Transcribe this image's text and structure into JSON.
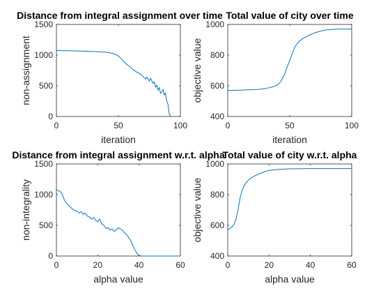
{
  "chart_data": [
    {
      "type": "line",
      "title": "Distance from integral assignment over time",
      "xlabel": "iteration",
      "ylabel": "non-assignment",
      "xlim": [
        0,
        100
      ],
      "ylim": [
        0,
        1500
      ],
      "xticks": [
        "0",
        "50",
        "100"
      ],
      "yticks": [
        "0",
        "500",
        "1000",
        "1500"
      ],
      "color": "#0072BD",
      "x": [
        0,
        5,
        10,
        15,
        20,
        25,
        30,
        35,
        38,
        40,
        42,
        45,
        48,
        50,
        53,
        55,
        58,
        60,
        62,
        65,
        68,
        70,
        72,
        73,
        75,
        76,
        78,
        79,
        80,
        81,
        82,
        83,
        84,
        85,
        86,
        87,
        88,
        89,
        90,
        91,
        92
      ],
      "y": [
        1075,
        1073,
        1070,
        1068,
        1066,
        1062,
        1058,
        1055,
        1050,
        1048,
        1040,
        1030,
        1012,
        985,
        930,
        880,
        830,
        800,
        760,
        720,
        690,
        650,
        610,
        640,
        580,
        620,
        540,
        560,
        480,
        510,
        430,
        470,
        380,
        400,
        440,
        350,
        380,
        250,
        200,
        40,
        0
      ]
    },
    {
      "type": "line",
      "title": "Total value of city over time",
      "xlabel": "iteration",
      "ylabel": "objective value",
      "xlim": [
        0,
        100
      ],
      "ylim": [
        400,
        1000
      ],
      "xticks": [
        "0",
        "50",
        "100"
      ],
      "yticks": [
        "400",
        "600",
        "800",
        "1000"
      ],
      "color": "#0072BD",
      "x": [
        0,
        10,
        20,
        25,
        30,
        35,
        38,
        40,
        42,
        44,
        46,
        48,
        50,
        52,
        54,
        56,
        58,
        60,
        65,
        70,
        75,
        80,
        85,
        90,
        95,
        100
      ],
      "y": [
        570,
        572,
        575,
        577,
        582,
        590,
        598,
        605,
        620,
        645,
        680,
        725,
        765,
        810,
        850,
        875,
        892,
        905,
        927,
        945,
        957,
        965,
        968,
        969,
        970,
        970
      ]
    },
    {
      "type": "line",
      "title": "Distance from integral assignment w.r.t. alpha",
      "xlabel": "alpha value",
      "ylabel": "non-integrality",
      "xlim": [
        0,
        60
      ],
      "ylim": [
        0,
        1500
      ],
      "xticks": [
        "0",
        "20",
        "40",
        "60"
      ],
      "yticks": [
        "0",
        "500",
        "1000",
        "1500"
      ],
      "color": "#0072BD",
      "x": [
        0,
        1,
        2,
        3,
        4,
        5,
        6,
        7,
        8,
        9,
        10,
        11,
        12,
        13,
        14,
        15,
        16,
        17,
        18,
        19,
        20,
        21,
        22,
        23,
        24,
        25,
        26,
        27,
        28,
        29,
        30,
        31,
        32,
        33,
        34,
        35,
        36,
        37,
        38,
        39,
        40,
        41,
        42,
        45,
        50,
        55,
        60
      ],
      "y": [
        1075,
        1065,
        1045,
        990,
        900,
        860,
        820,
        790,
        760,
        740,
        730,
        700,
        720,
        680,
        700,
        650,
        640,
        600,
        630,
        580,
        560,
        600,
        520,
        500,
        450,
        460,
        420,
        440,
        400,
        430,
        460,
        440,
        420,
        380,
        350,
        300,
        250,
        170,
        100,
        40,
        10,
        0,
        0,
        0,
        0,
        0,
        0
      ]
    },
    {
      "type": "line",
      "title": "Total value of city w.r.t. alpha",
      "xlabel": "alpha value",
      "ylabel": "objective value",
      "xlim": [
        0,
        60
      ],
      "ylim": [
        400,
        1000
      ],
      "xticks": [
        "0",
        "20",
        "40",
        "60"
      ],
      "yticks": [
        "400",
        "600",
        "800",
        "1000"
      ],
      "color": "#0072BD",
      "x": [
        0,
        1,
        2,
        3,
        4,
        5,
        6,
        7,
        8,
        9,
        10,
        12,
        15,
        18,
        20,
        25,
        30,
        40,
        50,
        60
      ],
      "y": [
        570,
        580,
        590,
        605,
        640,
        700,
        780,
        830,
        860,
        880,
        895,
        915,
        935,
        950,
        958,
        965,
        968,
        970,
        970,
        970
      ]
    }
  ]
}
